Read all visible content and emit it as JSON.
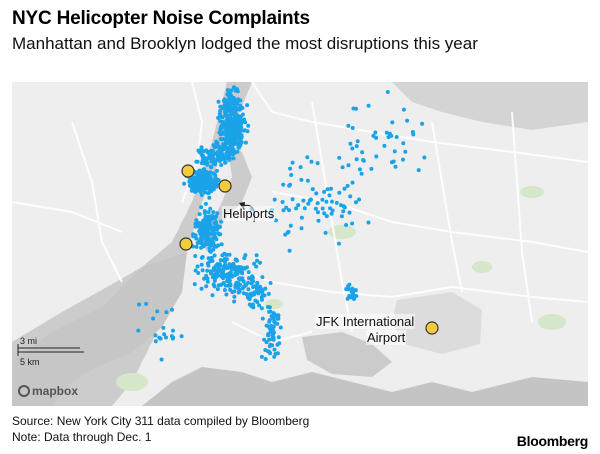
{
  "header": {
    "title": "NYC Helicopter Noise Complaints",
    "subtitle": "Manhattan and Brooklyn lodged the most disruptions this year"
  },
  "map": {
    "labels": {
      "heliports": "Heliports",
      "jfk_line1": "JFK International",
      "jfk_line2": "Airport"
    },
    "scale": {
      "miles": "3 mi",
      "km": "5 km"
    },
    "attribution": "mapbox",
    "colors": {
      "complaint": "#1aa3e8",
      "heliport_fill": "#f2cc3d",
      "land": "#ececec",
      "water": "#cfcfcf",
      "park": "#cfe3bf"
    }
  },
  "footer": {
    "source": "Source: New York City 311 data compiled by Bloomberg",
    "note": "Note: Data through Dec. 1",
    "brand": "Bloomberg"
  }
}
